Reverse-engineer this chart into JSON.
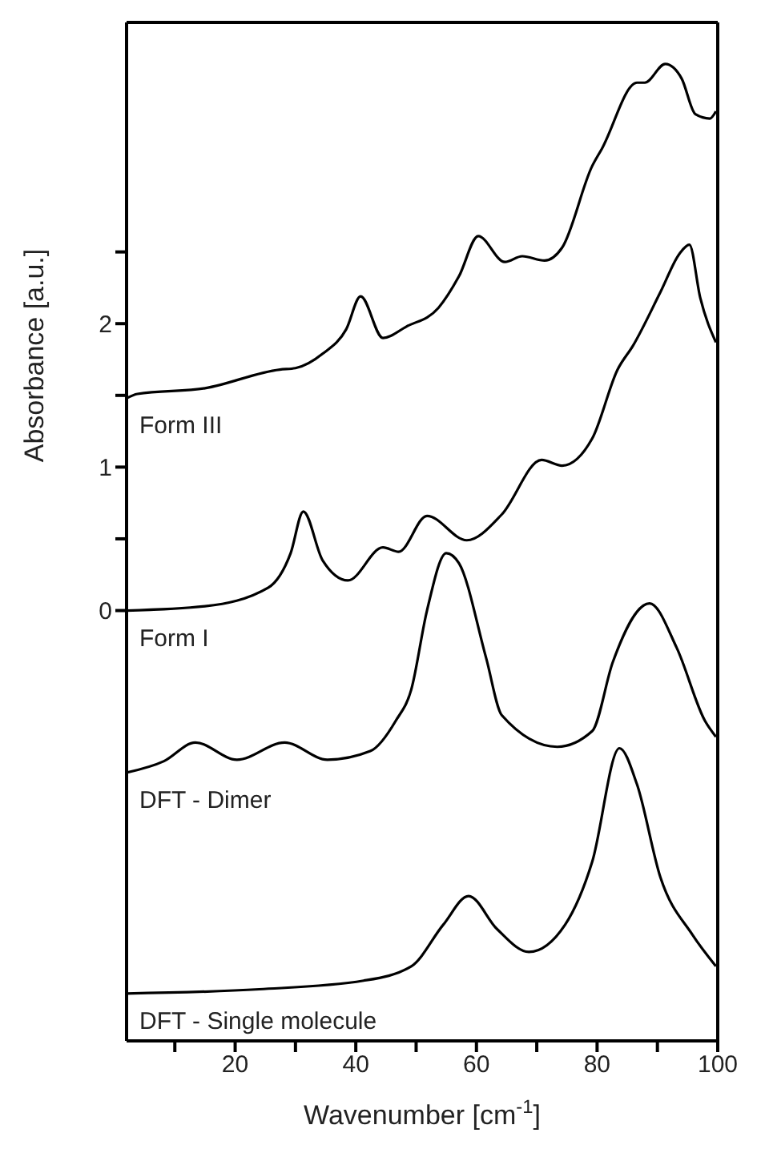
{
  "chart_data": {
    "type": "line",
    "xlabel": "Wavenumber [cm$^{-1}$]",
    "ylabel": "Absorbance [a.u.]",
    "xlim": [
      2,
      100
    ],
    "ylim": [
      -3,
      4.1
    ],
    "xticks": [
      {
        "value": 10,
        "label": null
      },
      20,
      {
        "value": 30,
        "label": null
      },
      40,
      {
        "value": 50,
        "label": null
      },
      60,
      {
        "value": 70,
        "label": null
      },
      80,
      {
        "value": 90,
        "label": null
      },
      100
    ],
    "yticks": [
      0,
      {
        "value": 0.5,
        "label": null
      },
      1,
      {
        "value": 1.5,
        "label": null
      },
      2,
      {
        "value": 2.5,
        "label": null
      }
    ],
    "grid": false,
    "legend": false,
    "marker": "none",
    "line_style": "solid",
    "series": [
      {
        "name": "Form III",
        "color": "#000000",
        "x": [
          2,
          3.8,
          15,
          27.4,
          30,
          34.5,
          38.4,
          40.8,
          44.5,
          48.4,
          53.7,
          57.1,
          60.3,
          64.7,
          67.6,
          71.3,
          74.2,
          79.2,
          80.8,
          86.6,
          87.9,
          91.3,
          94,
          96.3,
          98.7,
          99.7
        ],
        "values": [
          1.48,
          1.51,
          1.55,
          1.68,
          1.69,
          1.79,
          1.96,
          2.19,
          1.9,
          1.98,
          2.11,
          2.33,
          2.61,
          2.43,
          2.47,
          2.44,
          2.53,
          3.1,
          3.22,
          3.68,
          3.68,
          3.81,
          3.71,
          3.46,
          3.43,
          3.48
        ]
      },
      {
        "name": "Form I",
        "color": "#000000",
        "x": [
          2,
          15,
          25.5,
          29.2,
          31.3,
          34.5,
          38.7,
          44.5,
          47.1,
          51.8,
          58.4,
          64.2,
          70.8,
          74.2,
          79.2,
          83.4,
          86,
          90.5,
          93.7,
          95.3,
          97.1,
          99.7
        ],
        "values": [
          0,
          0.03,
          0.16,
          0.4,
          0.69,
          0.35,
          0.21,
          0.44,
          0.41,
          0.66,
          0.49,
          0.67,
          1.05,
          1.01,
          1.2,
          1.68,
          1.85,
          2.22,
          2.49,
          2.55,
          2.18,
          1.87
        ]
      },
      {
        "name": "DFT - Dimer",
        "color": "#000000",
        "x": [
          2,
          8.2,
          13.4,
          20.3,
          28.2,
          35.3,
          42.4,
          46.6,
          49.2,
          51.8,
          55,
          57.1,
          61.6,
          64.2,
          73.4,
          79.2,
          82.6,
          88.7,
          93.2,
          97.9,
          99.7
        ],
        "values": [
          -1.13,
          -1.05,
          -0.92,
          -1.04,
          -0.92,
          -1.04,
          -0.98,
          -0.77,
          -0.55,
          0,
          0.4,
          0.33,
          -0.33,
          -0.73,
          -0.95,
          -0.84,
          -0.36,
          0.05,
          -0.26,
          -0.77,
          -0.88
        ]
      },
      {
        "name": "DFT - Single molecule",
        "color": "#000000",
        "x": [
          2,
          24,
          41.3,
          49.2,
          54.5,
          58.7,
          63.4,
          68.7,
          74.7,
          79.2,
          83.7,
          86.6,
          90.5,
          95.8,
          99.7
        ],
        "values": [
          -2.67,
          -2.64,
          -2.58,
          -2.48,
          -2.19,
          -1.99,
          -2.22,
          -2.38,
          -2.19,
          -1.75,
          -0.96,
          -1.21,
          -1.86,
          -2.26,
          -2.48
        ]
      }
    ]
  }
}
